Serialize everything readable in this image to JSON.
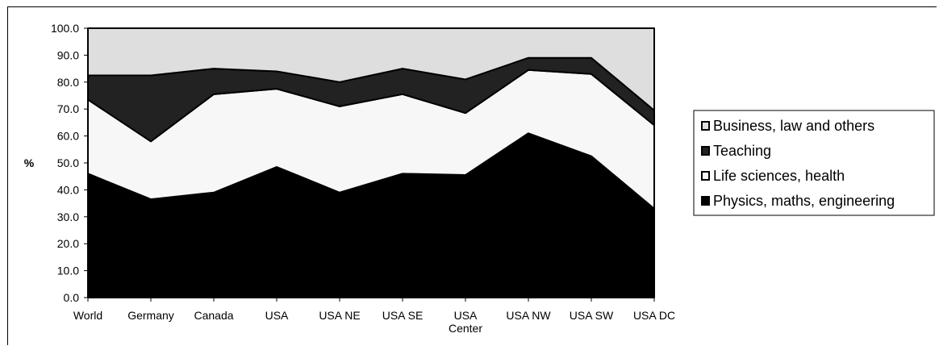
{
  "chart_data": {
    "type": "area",
    "stacked": true,
    "ylabel": "%",
    "ylim": [
      0,
      100
    ],
    "ytick_step": 10,
    "ytick_labels": [
      "0.0",
      "10.0",
      "20.0",
      "30.0",
      "40.0",
      "50.0",
      "60.0",
      "70.0",
      "80.0",
      "90.0",
      "100.0"
    ],
    "grid": false,
    "legend_position": "right",
    "categories": [
      [
        "World"
      ],
      [
        "Germany"
      ],
      [
        "Canada"
      ],
      [
        "USA"
      ],
      [
        "USA NE"
      ],
      [
        "USA SE"
      ],
      [
        "USA",
        "Center"
      ],
      [
        "USA NW"
      ],
      [
        "USA SW"
      ],
      [
        "USA DC"
      ]
    ],
    "series": [
      {
        "name": "Physics, maths, engineering",
        "color": "#000000",
        "values": [
          46.0,
          36.5,
          39.0,
          48.5,
          39.0,
          46.0,
          45.5,
          61.0,
          52.5,
          33.0
        ]
      },
      {
        "name": "Life sciences, health",
        "color": "#f7f7f7",
        "values": [
          27.5,
          21.5,
          36.5,
          29.0,
          32.0,
          29.5,
          23.0,
          23.5,
          30.5,
          31.0
        ]
      },
      {
        "name": "Teaching",
        "color": "#222222",
        "values": [
          9.0,
          24.5,
          9.5,
          6.5,
          9.0,
          9.5,
          12.5,
          4.5,
          6.0,
          5.5
        ]
      },
      {
        "name": "Business, law and others",
        "color": "#dedede",
        "values": [
          17.5,
          17.5,
          15.0,
          16.0,
          20.0,
          15.0,
          19.0,
          11.0,
          11.0,
          30.5
        ]
      }
    ],
    "legend_order": [
      3,
      2,
      1,
      0
    ]
  }
}
